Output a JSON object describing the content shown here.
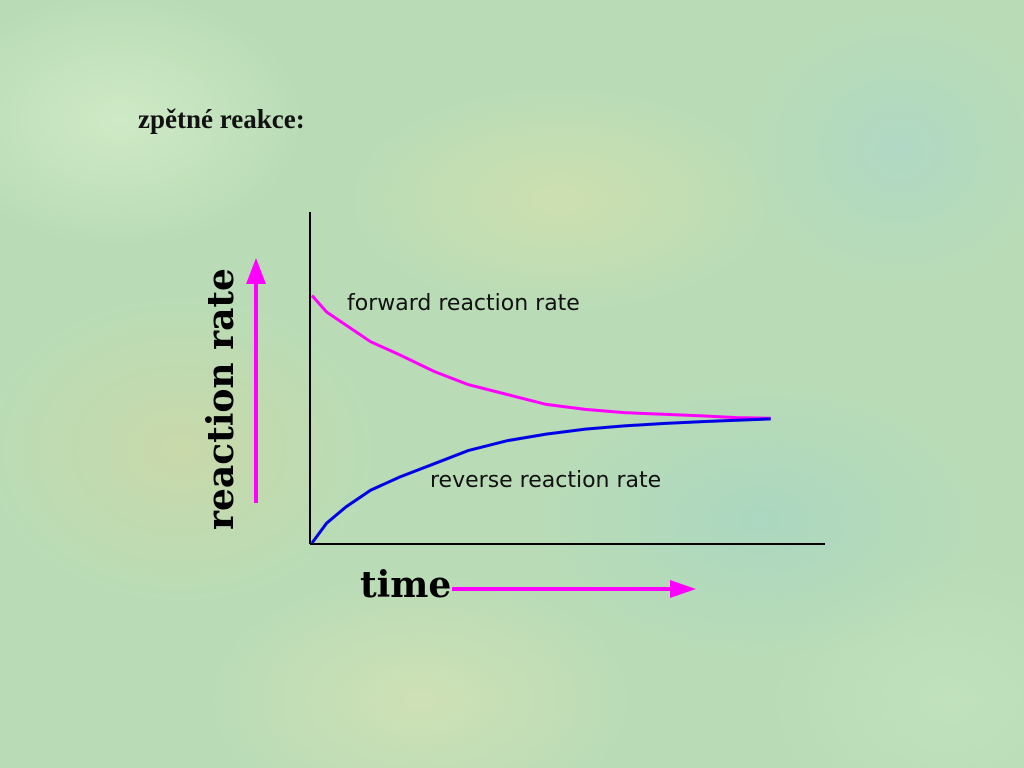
{
  "slide": {
    "title": "zpětné reakce:"
  },
  "colors": {
    "forward": "#ff00ff",
    "reverse": "#0000e6",
    "axis": "#000000",
    "arrow": "#ff00ff"
  },
  "chart_data": {
    "type": "line",
    "title": "",
    "xlabel": "time",
    "ylabel": "reaction rate",
    "xlim": [
      0,
      10
    ],
    "ylim": [
      0,
      10
    ],
    "grid": false,
    "series": [
      {
        "name": "forward reaction rate",
        "x": [
          0,
          0.3,
          0.7,
          1.2,
          1.8,
          2.5,
          3.2,
          4.0,
          4.8,
          5.6,
          6.4,
          7.2,
          8.0,
          8.7,
          9.4
        ],
        "y": [
          7.5,
          7.0,
          6.6,
          6.1,
          5.7,
          5.2,
          4.8,
          4.5,
          4.2,
          4.05,
          3.95,
          3.9,
          3.85,
          3.8,
          3.78
        ]
      },
      {
        "name": "reverse reaction rate",
        "x": [
          0,
          0.3,
          0.7,
          1.2,
          1.8,
          2.5,
          3.2,
          4.0,
          4.8,
          5.6,
          6.4,
          7.2,
          8.0,
          8.7,
          9.4
        ],
        "y": [
          0,
          0.6,
          1.1,
          1.6,
          2.0,
          2.4,
          2.8,
          3.1,
          3.3,
          3.45,
          3.55,
          3.62,
          3.68,
          3.72,
          3.76
        ]
      }
    ],
    "annotations": [
      "forward reaction rate",
      "reverse reaction rate"
    ]
  }
}
